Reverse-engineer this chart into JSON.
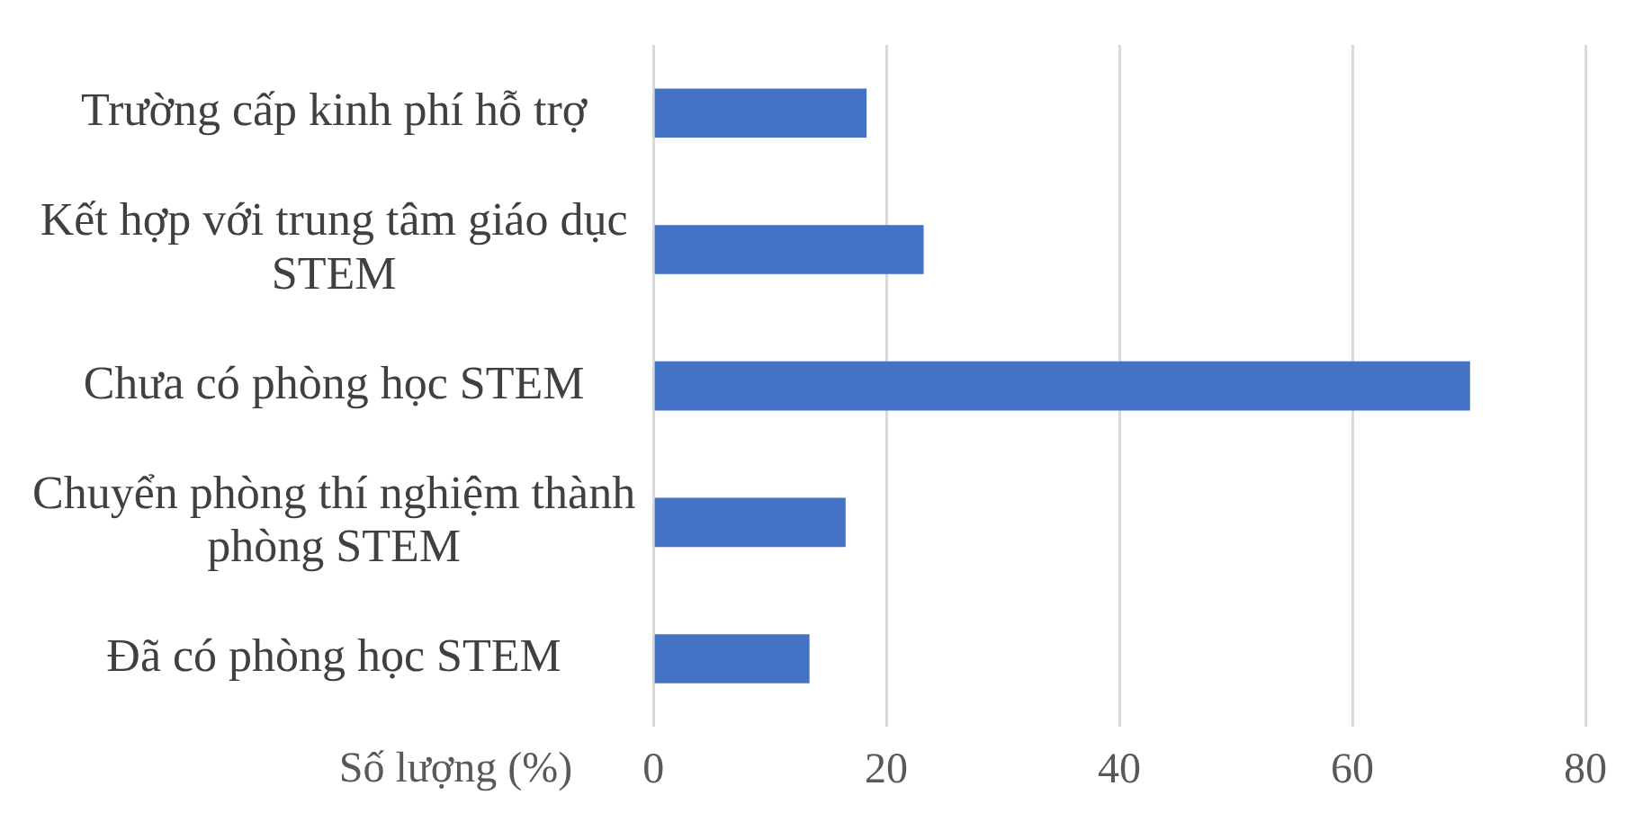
{
  "chart_data": {
    "type": "bar",
    "orientation": "horizontal",
    "xlabel": "Số lượng (%)",
    "categories": [
      "Trường cấp kinh phí hỗ trợ",
      "Kết hợp với trung tâm giáo dục STEM",
      "Chưa có phòng học STEM",
      "Chuyển phòng thí nghiệm thành phòng STEM",
      "Đã có phòng học STEM"
    ],
    "values": [
      18.3,
      23.2,
      70.1,
      16.5,
      13.4
    ],
    "color": "#4472c4",
    "xlim": [
      0,
      80
    ],
    "xticks": [
      0,
      20,
      40,
      60,
      80
    ],
    "grid": "x",
    "legend": false
  }
}
